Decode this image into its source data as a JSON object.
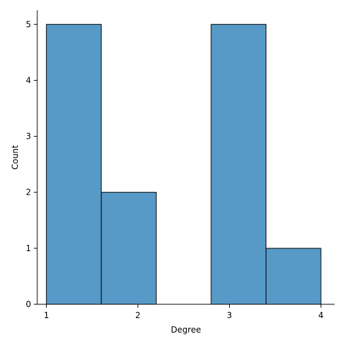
{
  "chart_data": {
    "type": "bar",
    "subtype": "histogram",
    "xlabel": "Degree",
    "ylabel": "Count",
    "xlim": [
      0.9,
      4.15
    ],
    "ylim": [
      0,
      5.25
    ],
    "xticks": [
      1,
      2,
      3,
      4
    ],
    "yticks": [
      0,
      1,
      2,
      3,
      4,
      5
    ],
    "bins": [
      {
        "start": 1.0,
        "end": 1.6,
        "count": 5
      },
      {
        "start": 1.6,
        "end": 2.2,
        "count": 2
      },
      {
        "start": 2.2,
        "end": 2.8,
        "count": 0
      },
      {
        "start": 2.8,
        "end": 3.4,
        "count": 5
      },
      {
        "start": 3.4,
        "end": 4.0,
        "count": 1
      }
    ],
    "bar_color": "#5799c7",
    "edge_color": "#000000",
    "grid": false,
    "legend": "none"
  }
}
